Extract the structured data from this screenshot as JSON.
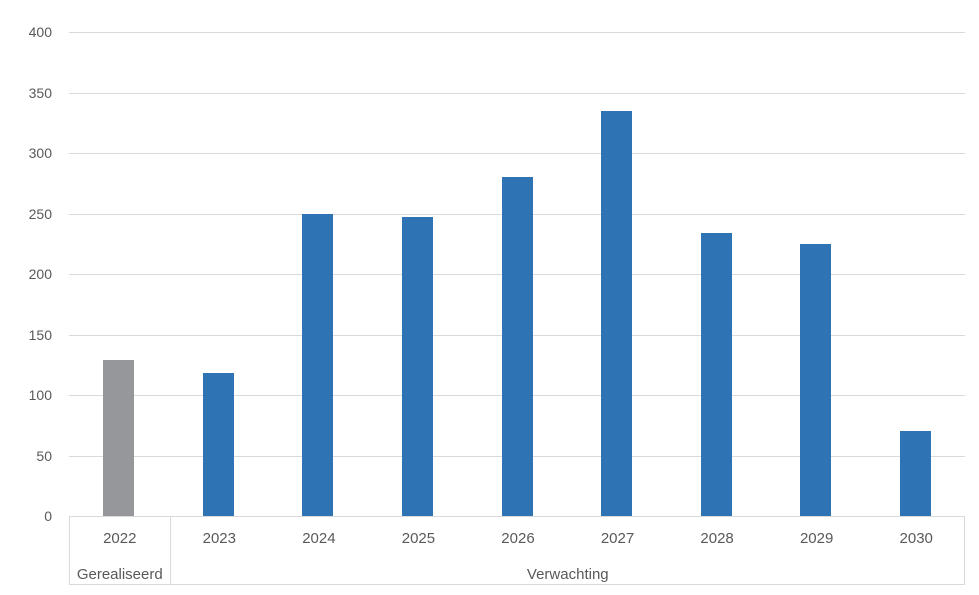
{
  "chart_data": {
    "type": "bar",
    "title": "",
    "xlabel": "",
    "ylabel": "",
    "categories": [
      "2022",
      "2023",
      "2024",
      "2025",
      "2026",
      "2027",
      "2028",
      "2029",
      "2030"
    ],
    "values": [
      129,
      118,
      250,
      247,
      280,
      335,
      234,
      225,
      70
    ],
    "groups": [
      {
        "label": "Gerealiseerd",
        "category_span": [
          "2022"
        ],
        "color": "#95979A"
      },
      {
        "label": "Verwachting",
        "category_span": [
          "2023",
          "2024",
          "2025",
          "2026",
          "2027",
          "2028",
          "2029",
          "2030"
        ],
        "color": "#2E74B5"
      }
    ],
    "ylim": [
      0,
      400
    ],
    "yticks": [
      0,
      50,
      100,
      150,
      200,
      250,
      300,
      350,
      400
    ],
    "grid": true,
    "legend": "none"
  },
  "colors": {
    "realized_bar": "#95979A",
    "expected_bar": "#2E74B5",
    "gridline": "#DADADA",
    "axis_text": "#595959",
    "background": "#FFFFFF"
  }
}
